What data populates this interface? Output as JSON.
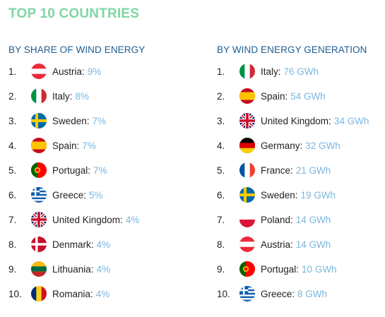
{
  "title": "TOP 10 COUNTRIES",
  "share": {
    "heading": "BY SHARE OF WIND ENERGY",
    "items": [
      {
        "rank": "1.",
        "flag": "austria-flag-icon",
        "country": "Austria:",
        "value": "9%"
      },
      {
        "rank": "2.",
        "flag": "italy-flag-icon",
        "country": "Italy:",
        "value": "8%"
      },
      {
        "rank": "3.",
        "flag": "sweden-flag-icon",
        "country": "Sweden:",
        "value": "7%"
      },
      {
        "rank": "4.",
        "flag": "spain-flag-icon",
        "country": "Spain:",
        "value": "7%"
      },
      {
        "rank": "5.",
        "flag": "portugal-flag-icon",
        "country": "Portugal:",
        "value": "7%"
      },
      {
        "rank": "6.",
        "flag": "greece-flag-icon",
        "country": "Greece:",
        "value": "5%"
      },
      {
        "rank": "7.",
        "flag": "uk-flag-icon",
        "country": "United Kingdom:",
        "value": "4%"
      },
      {
        "rank": "8.",
        "flag": "denmark-flag-icon",
        "country": "Denmark:",
        "value": "4%"
      },
      {
        "rank": "9.",
        "flag": "lithuania-flag-icon",
        "country": "Lithuania:",
        "value": "4%"
      },
      {
        "rank": "10.",
        "flag": "romania-flag-icon",
        "country": "Romania:",
        "value": "4%"
      }
    ]
  },
  "generation": {
    "heading": "BY WIND ENERGY GENERATION",
    "items": [
      {
        "rank": "1.",
        "flag": "italy-flag-icon",
        "country": "Italy:",
        "value": "76 GWh"
      },
      {
        "rank": "2.",
        "flag": "spain-flag-icon",
        "country": "Spain:",
        "value": "54 GWh"
      },
      {
        "rank": "3.",
        "flag": "uk-flag-icon",
        "country": "United Kingdom:",
        "value": "34 GWh"
      },
      {
        "rank": "4.",
        "flag": "germany-flag-icon",
        "country": "Germany:",
        "value": "32 GWh"
      },
      {
        "rank": "5.",
        "flag": "france-flag-icon",
        "country": "France:",
        "value": "21 GWh"
      },
      {
        "rank": "6.",
        "flag": "sweden-flag-icon",
        "country": "Sweden:",
        "value": "19 GWh"
      },
      {
        "rank": "7.",
        "flag": "poland-flag-icon",
        "country": "Poland:",
        "value": "14 GWh"
      },
      {
        "rank": "8.",
        "flag": "austria-flag-icon",
        "country": "Austria:",
        "value": "14 GWh"
      },
      {
        "rank": "9.",
        "flag": "portugal-flag-icon",
        "country": "Portugal:",
        "value": "10 GWh"
      },
      {
        "rank": "10.",
        "flag": "greece-flag-icon",
        "country": "Greece:",
        "value": "8 GWh"
      }
    ]
  },
  "colors": {
    "title": "#7fd6a3",
    "heading": "#1f5d90",
    "value": "#7ab6de",
    "text": "#222222"
  }
}
